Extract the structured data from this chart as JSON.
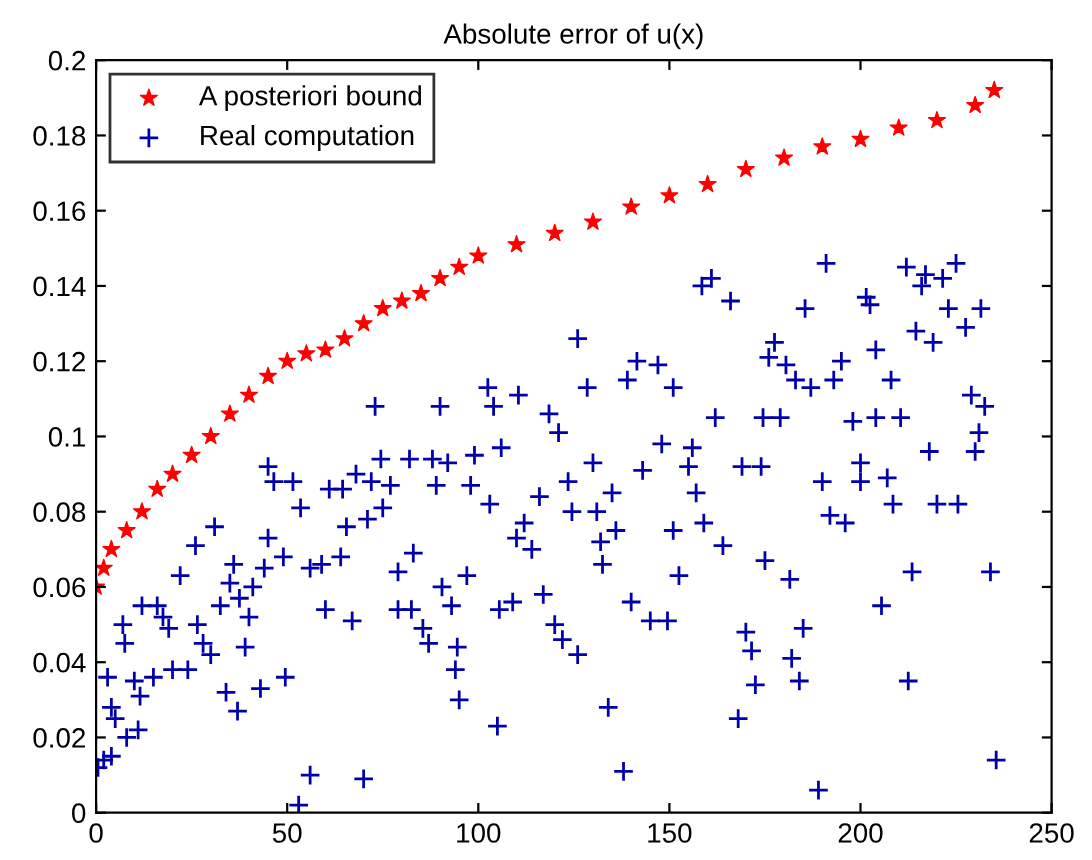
{
  "chart_data": {
    "type": "scatter",
    "title": "Absolute error of u(x)",
    "xlim": [
      0,
      250
    ],
    "xticks": [
      0,
      50,
      100,
      150,
      200,
      250
    ],
    "ylim": [
      0,
      0.2
    ],
    "yticks": [
      0,
      0.02,
      0.04,
      0.06,
      0.08,
      0.1,
      0.12,
      0.14,
      0.16,
      0.18,
      0.2
    ],
    "grid": false,
    "legend": "top left",
    "series": [
      {
        "name": "A posteriori bound",
        "color": "#ff0000",
        "marker": "star",
        "x": [
          0,
          2,
          4,
          8,
          12,
          16,
          20,
          25,
          30,
          35,
          40,
          45,
          50,
          55,
          60,
          65,
          70,
          75,
          80,
          85,
          90,
          95,
          100,
          110,
          120,
          130,
          140,
          150,
          160,
          170,
          180,
          190,
          200,
          210,
          220,
          230,
          235
        ],
        "values": [
          0.06,
          0.065,
          0.07,
          0.075,
          0.08,
          0.086,
          0.09,
          0.095,
          0.1,
          0.106,
          0.111,
          0.116,
          0.12,
          0.122,
          0.123,
          0.126,
          0.13,
          0.134,
          0.136,
          0.138,
          0.142,
          0.145,
          0.148,
          0.151,
          0.154,
          0.157,
          0.161,
          0.164,
          0.167,
          0.171,
          0.174,
          0.177,
          0.179,
          0.182,
          0.184,
          0.188,
          0.192
        ]
      },
      {
        "name": "Real computation",
        "color": "#0000aa",
        "marker": "cross",
        "x": [
          0.5,
          2,
          3,
          4,
          5,
          4,
          7,
          7.5,
          8,
          11,
          10,
          11.5,
          12,
          15,
          16,
          17.5,
          19,
          20,
          22,
          24,
          26,
          26.5,
          28,
          30,
          31,
          32.5,
          34,
          35,
          36,
          37,
          37.5,
          39,
          40,
          41,
          43,
          44,
          45,
          45,
          46.5,
          49,
          49.5,
          51.5,
          53.5,
          53,
          56,
          56,
          59,
          60,
          61,
          64.5,
          64,
          65.5,
          67,
          68,
          70,
          71,
          73,
          72,
          74.5,
          75,
          77,
          79,
          79,
          83,
          82.5,
          82,
          85.5,
          87,
          88,
          89,
          90,
          90.5,
          92,
          93,
          94,
          94.5,
          95,
          97,
          98,
          99,
          102.5,
          103,
          104,
          105,
          106,
          105.5,
          109,
          110.5,
          110,
          112,
          114,
          116,
          117,
          118.5,
          120,
          121,
          122,
          123.5,
          124.5,
          126,
          126,
          128.5,
          130,
          131,
          132,
          132.5,
          134,
          135,
          136,
          138,
          139,
          140,
          141.5,
          143,
          145,
          147,
          148,
          149.5,
          151,
          151,
          152.5,
          155,
          156,
          157,
          159,
          158.5,
          161,
          162,
          164,
          166,
          169,
          168,
          170,
          171.5,
          172.5,
          174,
          175,
          174.5,
          176,
          177.5,
          179,
          180.5,
          181.5,
          182,
          183,
          184,
          185,
          185.5,
          187,
          190,
          189,
          191,
          192,
          193,
          195,
          196,
          198,
          200,
          200,
          201.5,
          202.5,
          204,
          204,
          205.5,
          207,
          208,
          208.5,
          210.5,
          212.5,
          212,
          213.5,
          214.5,
          216,
          217,
          218,
          219,
          220,
          221.5,
          223,
          225,
          225.5,
          227.5,
          229,
          230,
          231,
          231.5,
          232.5,
          234,
          235.5
        ],
        "values": [
          0.012,
          0.014,
          0.036,
          0.028,
          0.025,
          0.015,
          0.05,
          0.045,
          0.02,
          0.022,
          0.035,
          0.031,
          0.055,
          0.036,
          0.055,
          0.052,
          0.049,
          0.038,
          0.063,
          0.038,
          0.071,
          0.05,
          0.045,
          0.042,
          0.076,
          0.055,
          0.032,
          0.061,
          0.066,
          0.027,
          0.057,
          0.044,
          0.052,
          0.06,
          0.033,
          0.065,
          0.073,
          0.092,
          0.088,
          0.068,
          0.036,
          0.088,
          0.081,
          0.002,
          0.01,
          0.065,
          0.066,
          0.054,
          0.086,
          0.086,
          0.068,
          0.076,
          0.051,
          0.09,
          0.009,
          0.078,
          0.108,
          0.088,
          0.094,
          0.081,
          0.087,
          0.064,
          0.054,
          0.069,
          0.054,
          0.094,
          0.049,
          0.045,
          0.094,
          0.087,
          0.108,
          0.06,
          0.093,
          0.055,
          0.038,
          0.044,
          0.03,
          0.063,
          0.087,
          0.095,
          0.113,
          0.082,
          0.108,
          0.023,
          0.097,
          0.054,
          0.056,
          0.111,
          0.073,
          0.077,
          0.07,
          0.084,
          0.058,
          0.106,
          0.05,
          0.101,
          0.046,
          0.088,
          0.08,
          0.042,
          0.126,
          0.113,
          0.093,
          0.08,
          0.072,
          0.066,
          0.028,
          0.085,
          0.075,
          0.011,
          0.115,
          0.056,
          0.12,
          0.091,
          0.051,
          0.119,
          0.098,
          0.051,
          0.075,
          0.113,
          0.063,
          0.092,
          0.097,
          0.085,
          0.077,
          0.14,
          0.142,
          0.105,
          0.071,
          0.136,
          0.092,
          0.025,
          0.048,
          0.043,
          0.034,
          0.092,
          0.067,
          0.105,
          0.121,
          0.125,
          0.105,
          0.119,
          0.062,
          0.041,
          0.115,
          0.035,
          0.049,
          0.134,
          0.113,
          0.088,
          0.006,
          0.146,
          0.079,
          0.115,
          0.12,
          0.077,
          0.104,
          0.093,
          0.088,
          0.137,
          0.135,
          0.105,
          0.123,
          0.055,
          0.089,
          0.115,
          0.082,
          0.105,
          0.035,
          0.145,
          0.064,
          0.128,
          0.14,
          0.143,
          0.096,
          0.125,
          0.082,
          0.142,
          0.134,
          0.146,
          0.082,
          0.129,
          0.111,
          0.096,
          0.101,
          0.134,
          0.108,
          0.064,
          0.014
        ]
      }
    ]
  }
}
